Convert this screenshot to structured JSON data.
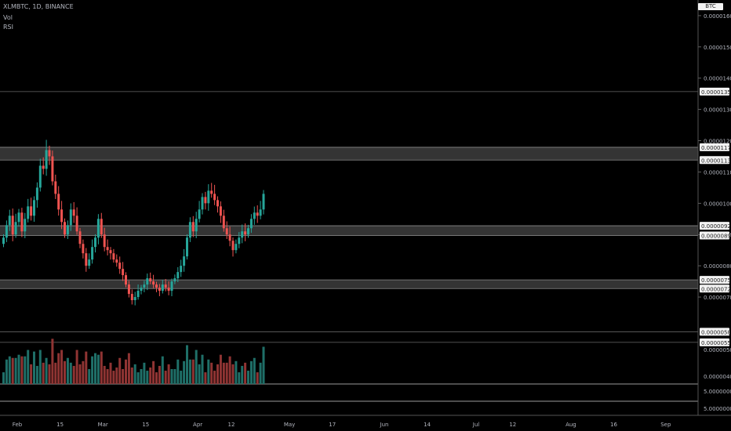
{
  "header": {
    "symbol_line": "XLMBTC, 1D, BINANCE",
    "vol_label": "Vol",
    "rsi_label": "RSI",
    "currency_tag": "BTC"
  },
  "chart_data": {
    "type": "candlestick",
    "symbol": "XLMBTC",
    "interval": "1D",
    "exchange": "BINANCE",
    "ylim": [
      6.6e-06,
      1.65e-05
    ],
    "price_ticks": [
      "0.00001600",
      "0.00001500",
      "0.00001400",
      "0.00001300",
      "0.00001200",
      "0.00001100",
      "0.00001000",
      "0.00000900",
      "0.00000800",
      "0.00000700"
    ],
    "tick_values": [
      1.6e-05,
      1.5e-05,
      1.4e-05,
      1.3e-05,
      1.2e-05,
      1.1e-05,
      1e-05,
      9e-06,
      8e-06,
      7e-06
    ],
    "volume_ticks": [
      "0.00000500",
      "0.00000400"
    ],
    "volume_tick_values": [
      500,
      400
    ],
    "volume_ylim": [
      370,
      650
    ],
    "rsi_ticks": [
      "5.00000000",
      "5.00000000"
    ],
    "x_labels": [
      "Feb",
      "15",
      "Mar",
      "15",
      "Apr",
      "12",
      "May",
      "17",
      "Jun",
      "14",
      "Jul",
      "12",
      "Aug",
      "16",
      "Sep",
      "13"
    ],
    "x_label_days": [
      0,
      14,
      28,
      42,
      59,
      70,
      89,
      103,
      120,
      134,
      150,
      162,
      181,
      195,
      212,
      226
    ],
    "horizontal_lines": [
      {
        "value": 1.357e-05,
        "label": "0.00001357"
      },
      {
        "value": 5.89e-06,
        "label": "0.00000589"
      },
      {
        "value": 5.55e-06,
        "label": "0.00000555"
      }
    ],
    "zones": [
      {
        "top": 1.179e-05,
        "bottom": 1.138e-05,
        "top_label": "0.00001179",
        "bottom_label": "0.00001138"
      },
      {
        "top": 9.28e-06,
        "bottom": 8.97e-06,
        "top_label": "0.00000928",
        "bottom_label": "0.00000897"
      },
      {
        "top": 7.55e-06,
        "bottom": 7.27e-06,
        "top_label": "0.00000755",
        "bottom_label": "0.00000727"
      }
    ],
    "closes": [
      8.9,
      9.3,
      9.6,
      9.0,
      9.4,
      9.7,
      9.1,
      9.5,
      9.9,
      9.6,
      10.1,
      10.5,
      11.2,
      11.1,
      11.7,
      11.5,
      10.7,
      10.3,
      9.8,
      9.4,
      9.0,
      9.3,
      9.8,
      9.6,
      9.1,
      8.7,
      8.4,
      8.0,
      8.2,
      8.6,
      8.9,
      9.5,
      9.0,
      8.6,
      8.5,
      8.4,
      8.2,
      8.1,
      7.9,
      7.7,
      7.4,
      7.1,
      6.9,
      7.0,
      7.2,
      7.3,
      7.4,
      7.6,
      7.5,
      7.4,
      7.3,
      7.2,
      7.4,
      7.3,
      7.2,
      7.5,
      7.6,
      7.8,
      8.0,
      8.3,
      8.9,
      9.4,
      9.1,
      9.5,
      9.8,
      10.2,
      10.0,
      10.4,
      10.3,
      10.1,
      9.9,
      9.6,
      9.2,
      9.0,
      8.8,
      8.5,
      8.7,
      8.9,
      9.1,
      9.0,
      9.2,
      9.5,
      9.7,
      9.6,
      9.8,
      10.3
    ],
    "volume_colors": [
      "Green = up day",
      "Red = down day"
    ],
    "colors": {
      "background": "#000000",
      "up": "#26a69a",
      "down": "#ef5350",
      "volume_up": "#1f6f68",
      "volume_down": "#8f3433",
      "zone": "#3d3d3d",
      "axis_text": "#b2b5be",
      "tag_bg": "#f2f2f2"
    }
  }
}
